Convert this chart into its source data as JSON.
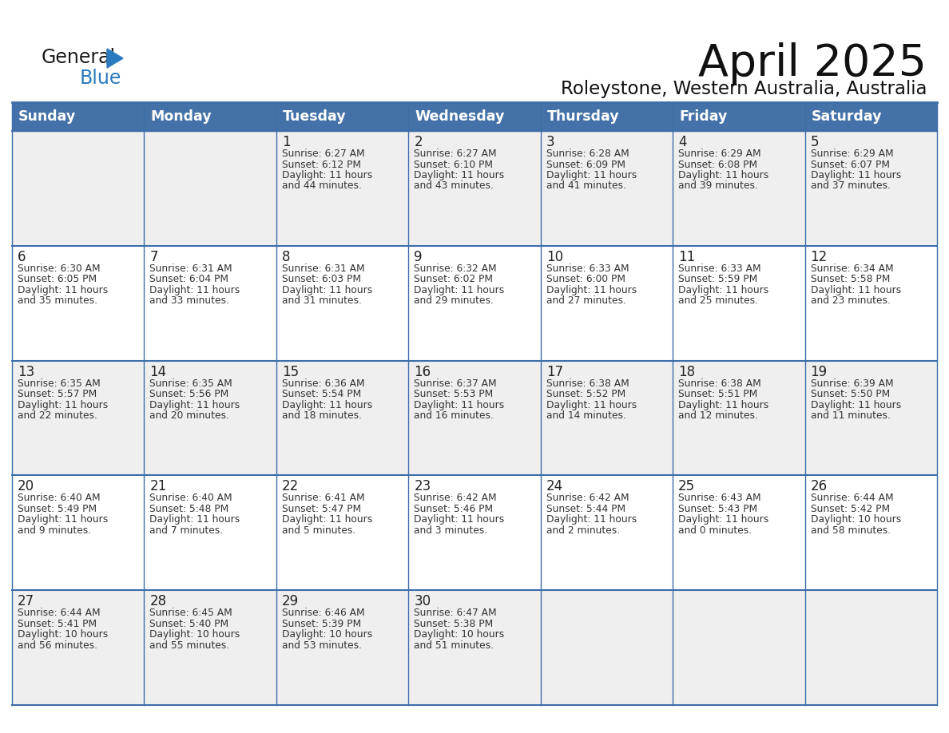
{
  "title": "April 2025",
  "subtitle": "Roleystone, Western Australia, Australia",
  "header_bg": "#4472a8",
  "header_text_color": "#ffffff",
  "row_bg_1": "#efefef",
  "row_bg_2": "#ffffff",
  "border_color": "#3d6da8",
  "text_color": "#222222",
  "days_of_week": [
    "Sunday",
    "Monday",
    "Tuesday",
    "Wednesday",
    "Thursday",
    "Friday",
    "Saturday"
  ],
  "calendar": [
    [
      {
        "day": "",
        "info": ""
      },
      {
        "day": "",
        "info": ""
      },
      {
        "day": "1",
        "info": "Sunrise: 6:27 AM\nSunset: 6:12 PM\nDaylight: 11 hours\nand 44 minutes."
      },
      {
        "day": "2",
        "info": "Sunrise: 6:27 AM\nSunset: 6:10 PM\nDaylight: 11 hours\nand 43 minutes."
      },
      {
        "day": "3",
        "info": "Sunrise: 6:28 AM\nSunset: 6:09 PM\nDaylight: 11 hours\nand 41 minutes."
      },
      {
        "day": "4",
        "info": "Sunrise: 6:29 AM\nSunset: 6:08 PM\nDaylight: 11 hours\nand 39 minutes."
      },
      {
        "day": "5",
        "info": "Sunrise: 6:29 AM\nSunset: 6:07 PM\nDaylight: 11 hours\nand 37 minutes."
      }
    ],
    [
      {
        "day": "6",
        "info": "Sunrise: 6:30 AM\nSunset: 6:05 PM\nDaylight: 11 hours\nand 35 minutes."
      },
      {
        "day": "7",
        "info": "Sunrise: 6:31 AM\nSunset: 6:04 PM\nDaylight: 11 hours\nand 33 minutes."
      },
      {
        "day": "8",
        "info": "Sunrise: 6:31 AM\nSunset: 6:03 PM\nDaylight: 11 hours\nand 31 minutes."
      },
      {
        "day": "9",
        "info": "Sunrise: 6:32 AM\nSunset: 6:02 PM\nDaylight: 11 hours\nand 29 minutes."
      },
      {
        "day": "10",
        "info": "Sunrise: 6:33 AM\nSunset: 6:00 PM\nDaylight: 11 hours\nand 27 minutes."
      },
      {
        "day": "11",
        "info": "Sunrise: 6:33 AM\nSunset: 5:59 PM\nDaylight: 11 hours\nand 25 minutes."
      },
      {
        "day": "12",
        "info": "Sunrise: 6:34 AM\nSunset: 5:58 PM\nDaylight: 11 hours\nand 23 minutes."
      }
    ],
    [
      {
        "day": "13",
        "info": "Sunrise: 6:35 AM\nSunset: 5:57 PM\nDaylight: 11 hours\nand 22 minutes."
      },
      {
        "day": "14",
        "info": "Sunrise: 6:35 AM\nSunset: 5:56 PM\nDaylight: 11 hours\nand 20 minutes."
      },
      {
        "day": "15",
        "info": "Sunrise: 6:36 AM\nSunset: 5:54 PM\nDaylight: 11 hours\nand 18 minutes."
      },
      {
        "day": "16",
        "info": "Sunrise: 6:37 AM\nSunset: 5:53 PM\nDaylight: 11 hours\nand 16 minutes."
      },
      {
        "day": "17",
        "info": "Sunrise: 6:38 AM\nSunset: 5:52 PM\nDaylight: 11 hours\nand 14 minutes."
      },
      {
        "day": "18",
        "info": "Sunrise: 6:38 AM\nSunset: 5:51 PM\nDaylight: 11 hours\nand 12 minutes."
      },
      {
        "day": "19",
        "info": "Sunrise: 6:39 AM\nSunset: 5:50 PM\nDaylight: 11 hours\nand 11 minutes."
      }
    ],
    [
      {
        "day": "20",
        "info": "Sunrise: 6:40 AM\nSunset: 5:49 PM\nDaylight: 11 hours\nand 9 minutes."
      },
      {
        "day": "21",
        "info": "Sunrise: 6:40 AM\nSunset: 5:48 PM\nDaylight: 11 hours\nand 7 minutes."
      },
      {
        "day": "22",
        "info": "Sunrise: 6:41 AM\nSunset: 5:47 PM\nDaylight: 11 hours\nand 5 minutes."
      },
      {
        "day": "23",
        "info": "Sunrise: 6:42 AM\nSunset: 5:46 PM\nDaylight: 11 hours\nand 3 minutes."
      },
      {
        "day": "24",
        "info": "Sunrise: 6:42 AM\nSunset: 5:44 PM\nDaylight: 11 hours\nand 2 minutes."
      },
      {
        "day": "25",
        "info": "Sunrise: 6:43 AM\nSunset: 5:43 PM\nDaylight: 11 hours\nand 0 minutes."
      },
      {
        "day": "26",
        "info": "Sunrise: 6:44 AM\nSunset: 5:42 PM\nDaylight: 10 hours\nand 58 minutes."
      }
    ],
    [
      {
        "day": "27",
        "info": "Sunrise: 6:44 AM\nSunset: 5:41 PM\nDaylight: 10 hours\nand 56 minutes."
      },
      {
        "day": "28",
        "info": "Sunrise: 6:45 AM\nSunset: 5:40 PM\nDaylight: 10 hours\nand 55 minutes."
      },
      {
        "day": "29",
        "info": "Sunrise: 6:46 AM\nSunset: 5:39 PM\nDaylight: 10 hours\nand 53 minutes."
      },
      {
        "day": "30",
        "info": "Sunrise: 6:47 AM\nSunset: 5:38 PM\nDaylight: 10 hours\nand 51 minutes."
      },
      {
        "day": "",
        "info": ""
      },
      {
        "day": "",
        "info": ""
      },
      {
        "day": "",
        "info": ""
      }
    ]
  ],
  "logo_general_color": "#1a1a1a",
  "logo_blue_color": "#2a7abf",
  "logo_triangle_color": "#2a7abf"
}
